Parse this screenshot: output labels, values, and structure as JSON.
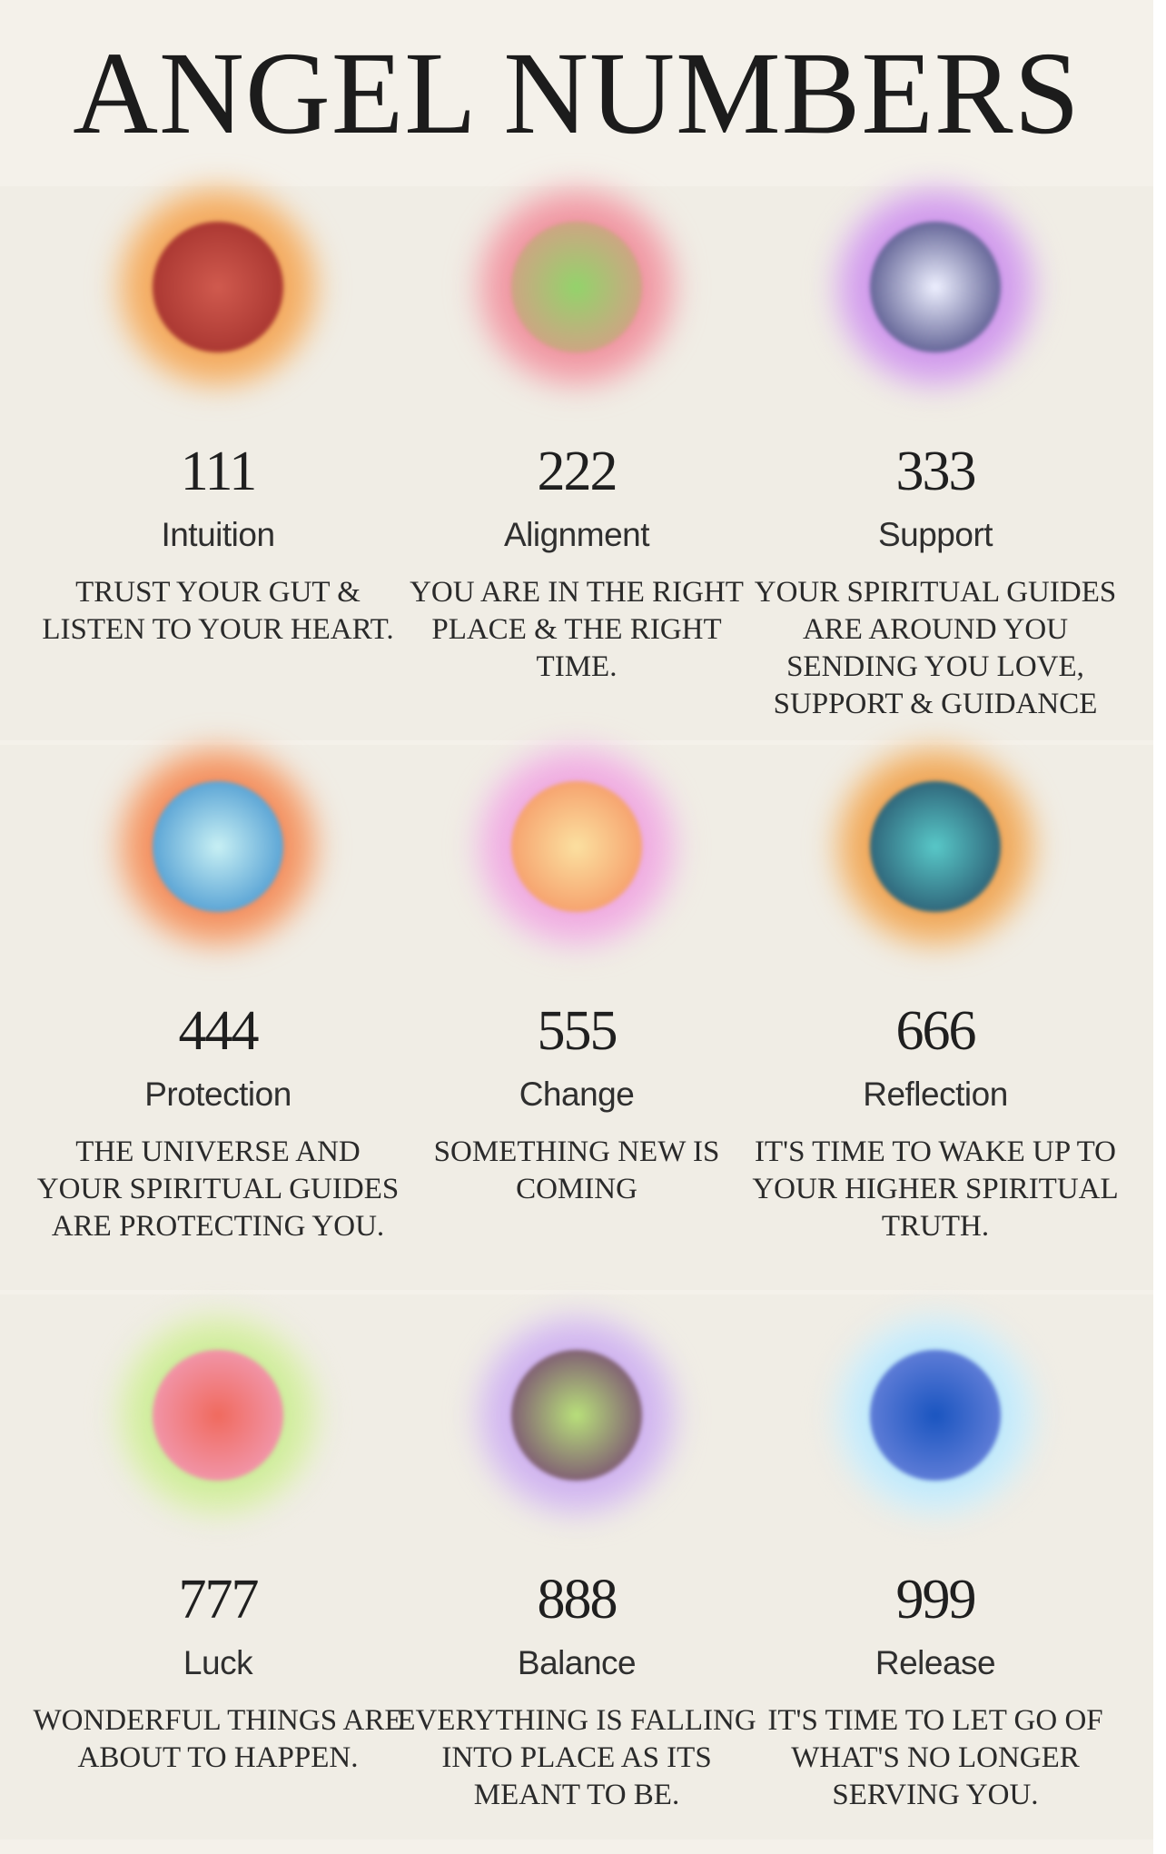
{
  "title": "ANGEL NUMBERS",
  "numbers": [
    {
      "number": "111",
      "name": "Intuition",
      "description": "TRUST YOUR GUT & LISTEN TO YOUR HEART.",
      "glow": [
        "#f6b36a",
        "#e48a3e"
      ],
      "core": [
        "#d05a4e",
        "#9c2a27"
      ]
    },
    {
      "number": "222",
      "name": "Alignment",
      "description": "YOU ARE IN THE RIGHT PLACE & THE RIGHT TIME.",
      "glow": [
        "#f3a4ae",
        "#e06a78"
      ],
      "core": [
        "#93d36b",
        "#e6928d"
      ]
    },
    {
      "number": "333",
      "name": "Support",
      "description": "YOUR SPIRITUAL GUIDES ARE AROUND YOU SENDING YOU LOVE, SUPPORT & GUIDANCE",
      "glow": [
        "#d8a6f0",
        "#b070d8"
      ],
      "core": [
        "#eef0ff",
        "#2d2e6e"
      ]
    },
    {
      "number": "444",
      "name": "Protection",
      "description": "THE UNIVERSE AND YOUR SPIRITUAL GUIDES ARE PROTECTING YOU.",
      "glow": [
        "#f6a16e",
        "#e3553a"
      ],
      "core": [
        "#c8f0f4",
        "#2f86c9"
      ]
    },
    {
      "number": "555",
      "name": "Change",
      "description": "SOMETHING NEW IS COMING",
      "glow": [
        "#f2b6e6",
        "#e488c8"
      ],
      "core": [
        "#fbe0a0",
        "#f48a5a"
      ]
    },
    {
      "number": "666",
      "name": "Reflection",
      "description": "IT'S TIME TO WAKE UP TO YOUR HIGHER SPIRITUAL TRUTH.",
      "glow": [
        "#f3b46a",
        "#dd7a26"
      ],
      "core": [
        "#58c8c8",
        "#1f3f5c"
      ]
    },
    {
      "number": "777",
      "name": "Luck",
      "description": "WONDERFUL THINGS ARE ABOUT TO HAPPEN.",
      "glow": [
        "#d9f0a6",
        "#a6dc78"
      ],
      "core": [
        "#f06a5e",
        "#f2a6c6"
      ]
    },
    {
      "number": "888",
      "name": "Balance",
      "description": "EVERYTHING IS FALLING INTO PLACE AS ITS MEANT TO BE.",
      "glow": [
        "#d6bdf2",
        "#b893e0"
      ],
      "core": [
        "#b8e07a",
        "#6a2c70"
      ]
    },
    {
      "number": "999",
      "name": "Release",
      "description": "IT'S TIME TO LET GO OF WHAT'S NO LONGER SERVING YOU.",
      "glow": [
        "#cdeefc",
        "#8fd4f4"
      ],
      "core": [
        "#1a55c0",
        "#7a8ce0"
      ]
    }
  ]
}
